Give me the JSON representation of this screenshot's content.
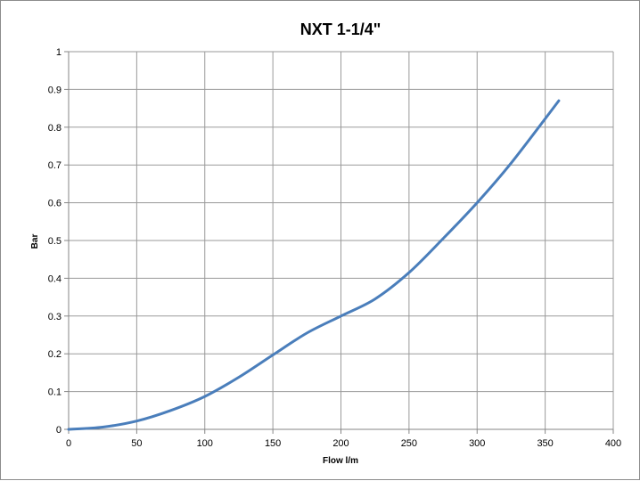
{
  "chart_data": {
    "type": "line",
    "title": "NXT 1-1/4\"",
    "xlabel": "Flow l/m",
    "ylabel": "Bar",
    "xlim": [
      0,
      400
    ],
    "ylim": [
      0,
      1
    ],
    "xticks": [
      0,
      50,
      100,
      150,
      200,
      250,
      300,
      350,
      400
    ],
    "yticks": [
      0,
      0.1,
      0.2,
      0.3,
      0.4,
      0.5,
      0.6,
      0.7,
      0.8,
      0.9,
      1
    ],
    "xtick_labels": [
      "0",
      "50",
      "100",
      "150",
      "200",
      "250",
      "300",
      "350",
      "400"
    ],
    "ytick_labels": [
      "0",
      "0.1",
      "0.2",
      "0.3",
      "0.4",
      "0.5",
      "0.6",
      "0.7",
      "0.8",
      "0.9",
      "1"
    ],
    "grid": true,
    "legend": "none",
    "series": [
      {
        "color": "#4a7ebb",
        "x": [
          0,
          25,
          50,
          75,
          100,
          125,
          150,
          175,
          200,
          225,
          250,
          275,
          300,
          325,
          360
        ],
        "y": [
          0,
          0.006,
          0.022,
          0.05,
          0.087,
          0.138,
          0.197,
          0.255,
          0.3,
          0.345,
          0.415,
          0.505,
          0.6,
          0.705,
          0.87
        ]
      }
    ]
  }
}
